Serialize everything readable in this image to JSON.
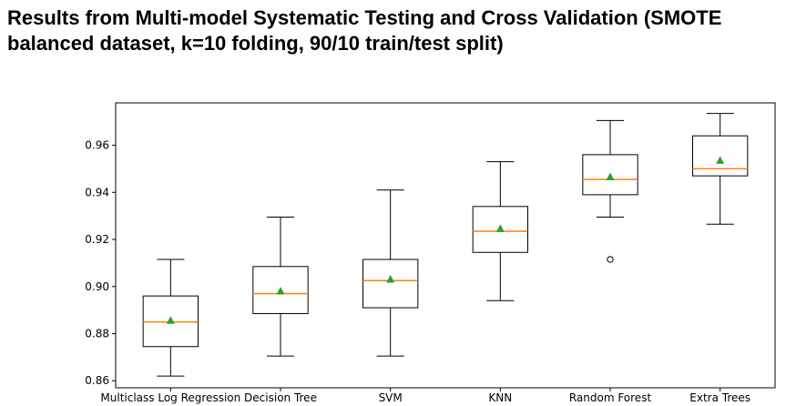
{
  "chart_data": {
    "type": "boxplot",
    "title_lines": [
      "Results from Multi-model Systematic Testing and Cross Validation (SMOTE",
      "balanced dataset, k=10 folding, 90/10 train/test split)"
    ],
    "xlabel": "",
    "ylabel": "",
    "ylim": [
      0.857,
      0.978
    ],
    "yticks": [
      "0.86",
      "0.88",
      "0.90",
      "0.92",
      "0.94",
      "0.96"
    ],
    "grid": false,
    "categories": [
      "Multiclass Log Regression",
      "Decision Tree",
      "SVM",
      "KNN",
      "Random Forest",
      "Extra Trees"
    ],
    "boxes": [
      {
        "whisker_low": 0.862,
        "q1": 0.8745,
        "median": 0.885,
        "q3": 0.896,
        "whisker_high": 0.9115,
        "mean": 0.8855,
        "outliers": []
      },
      {
        "whisker_low": 0.8705,
        "q1": 0.8885,
        "median": 0.897,
        "q3": 0.9085,
        "whisker_high": 0.9295,
        "mean": 0.898,
        "outliers": []
      },
      {
        "whisker_low": 0.8705,
        "q1": 0.891,
        "median": 0.9025,
        "q3": 0.9115,
        "whisker_high": 0.941,
        "mean": 0.903,
        "outliers": []
      },
      {
        "whisker_low": 0.894,
        "q1": 0.9145,
        "median": 0.9235,
        "q3": 0.934,
        "whisker_high": 0.953,
        "mean": 0.9245,
        "outliers": []
      },
      {
        "whisker_low": 0.9295,
        "q1": 0.939,
        "median": 0.9455,
        "q3": 0.956,
        "whisker_high": 0.9705,
        "mean": 0.9465,
        "outliers": [
          0.9115
        ]
      },
      {
        "whisker_low": 0.9265,
        "q1": 0.947,
        "median": 0.95,
        "q3": 0.964,
        "whisker_high": 0.9735,
        "mean": 0.9535,
        "outliers": []
      }
    ],
    "colors": {
      "box": "#000000",
      "median": "#ff7f0e",
      "mean": "#2ca02c",
      "outlier": "#000000"
    }
  }
}
